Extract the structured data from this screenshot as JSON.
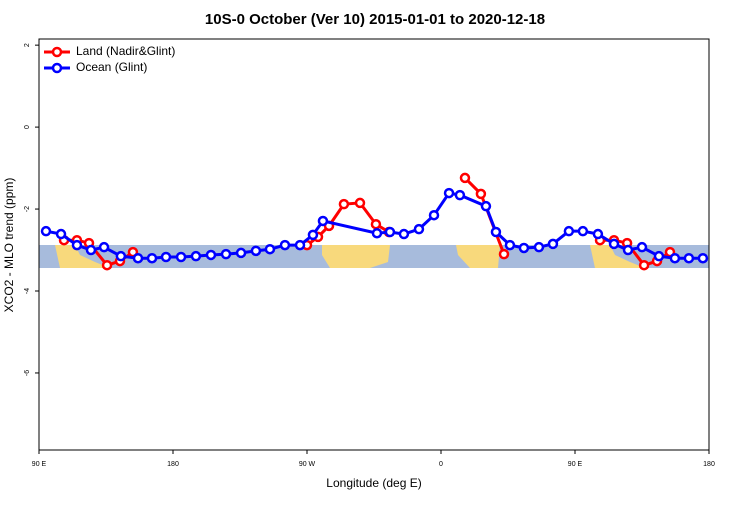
{
  "chart_data": {
    "type": "line",
    "title": "10S-0 October (Ver 10)   2015-01-01 to 2020-12-18",
    "x_label": "Longitude (deg E)",
    "y_label": "XCO2 - MLO trend (ppm)",
    "xlim": [
      90,
      540
    ],
    "ylim": [
      -7.88,
      2.15
    ],
    "xticks": [
      {
        "value": 90,
        "label": "90 E"
      },
      180,
      {
        "value": 270,
        "label": "90 W"
      },
      {
        "value": 360,
        "label": "0"
      },
      {
        "value": 450,
        "label": "90 E"
      },
      {
        "value": 540,
        "label": "180"
      }
    ],
    "yticks": [
      -6,
      -4,
      -2,
      0,
      2
    ],
    "legend": "top-left",
    "series": [
      {
        "name": "Land (Nadir&Glint)",
        "color": "#ff0000",
        "x": [
          106.8,
          115.5,
          123.6,
          135.7,
          144.4,
          153.1,
          210,
          270,
          277.4,
          284.8,
          294.8,
          305.6,
          316.3,
          325,
          350,
          376.1,
          386.8,
          402.3,
          430,
          466.8,
          476.2,
          485,
          496.4,
          505.1,
          513.8
        ],
        "values": [
          -2.76,
          -2.76,
          -2.83,
          -3.37,
          -3.27,
          -3.05,
          null,
          -2.88,
          -2.68,
          -2.41,
          -1.88,
          -1.85,
          -2.37,
          -2.56,
          null,
          -1.24,
          -1.63,
          -3.1,
          null,
          -2.76,
          -2.76,
          -2.83,
          -3.37,
          -3.27,
          -3.05
        ]
      },
      {
        "name": "Ocean (Glint)",
        "color": "#0000ff",
        "x": [
          94.7,
          104.8,
          115.5,
          124.9,
          133.7,
          145,
          156.5,
          165.9,
          175.3,
          185.4,
          195.4,
          205.5,
          215.6,
          225.7,
          235.7,
          245.1,
          255.2,
          265.3,
          274,
          280.7,
          317,
          325.7,
          335.1,
          345.2,
          355.3,
          365.4,
          372.7,
          390.2,
          396.9,
          406.3,
          415.7,
          425.8,
          435.2,
          445.9,
          455.3,
          465.4,
          476.2,
          485.6,
          495,
          506.4,
          517.1,
          526.5,
          535.9
        ],
        "values": [
          -2.54,
          -2.61,
          -2.88,
          -3.0,
          -2.93,
          -3.15,
          -3.2,
          -3.2,
          -3.17,
          -3.17,
          -3.15,
          -3.12,
          -3.1,
          -3.07,
          -3.02,
          -2.98,
          -2.88,
          -2.88,
          -2.63,
          -2.29,
          -2.59,
          -2.56,
          -2.61,
          -2.49,
          -2.15,
          -1.61,
          -1.66,
          -1.93,
          -2.56,
          -2.88,
          -2.95,
          -2.93,
          -2.85,
          -2.54,
          -2.54,
          -2.61,
          -2.85,
          -3.0,
          -2.93,
          -3.15,
          -3.2,
          -3.2,
          -3.2
        ]
      }
    ]
  }
}
